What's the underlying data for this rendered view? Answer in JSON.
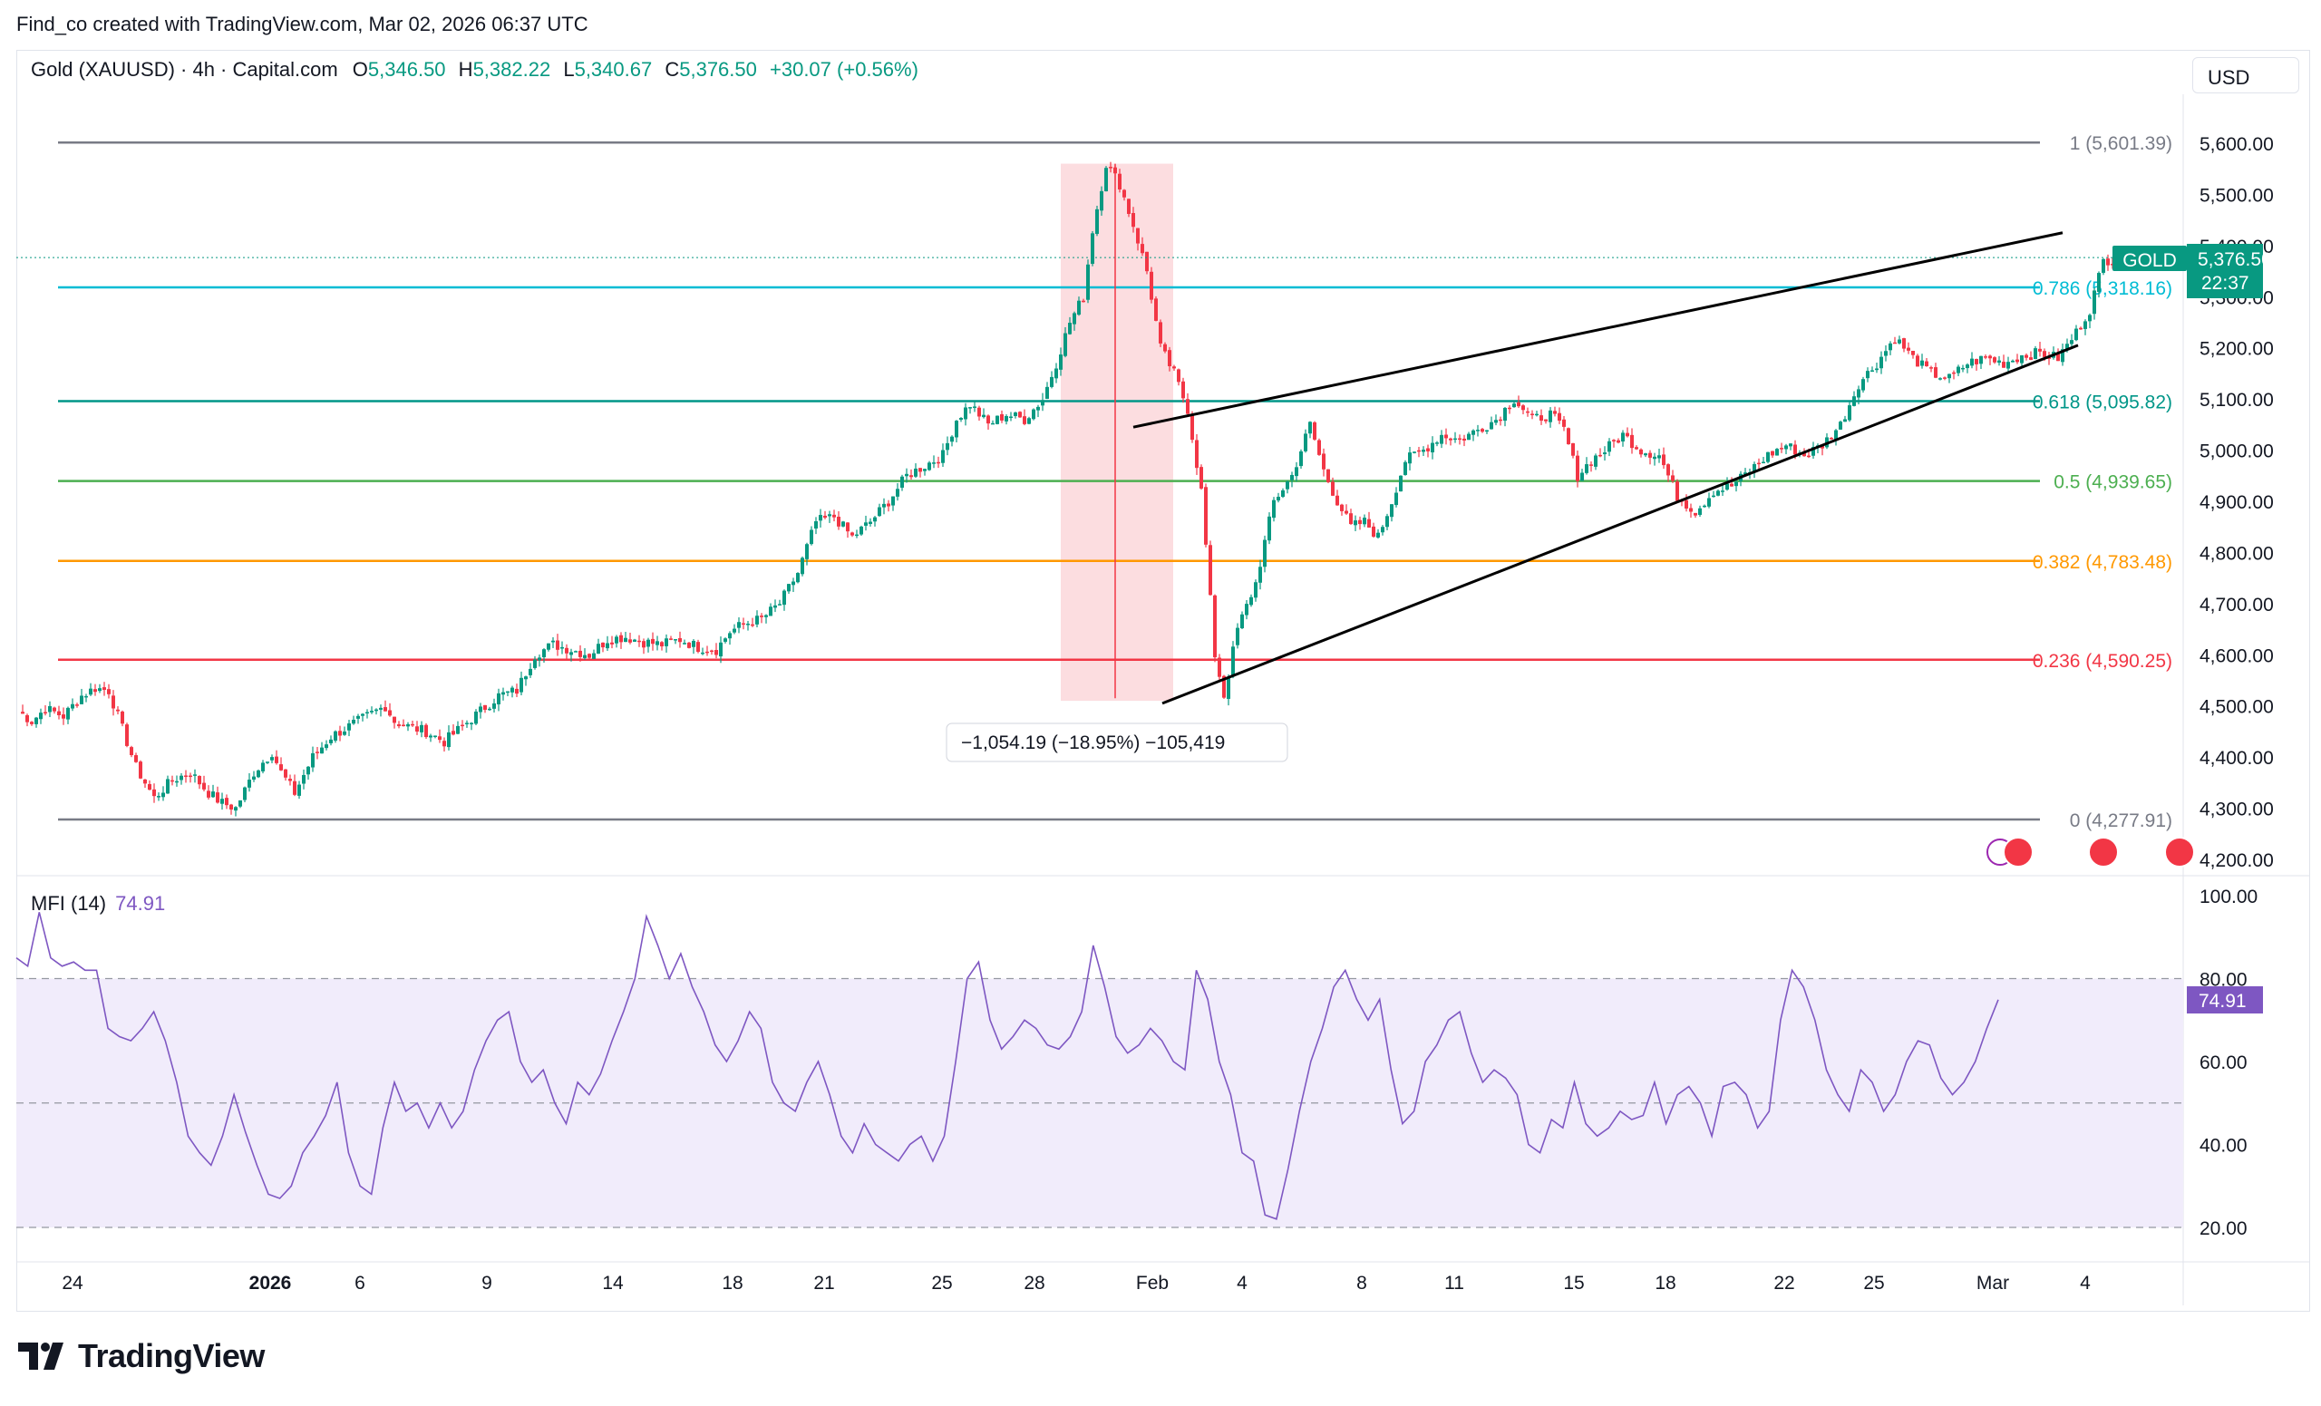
{
  "header": {
    "credit": "Find_co created with TradingView.com, Mar 02, 2026 06:37 UTC"
  },
  "symbol": {
    "title": "Gold (XAUUSD) · 4h · Capital.com",
    "o_label": "O",
    "o": "5,346.50",
    "h_label": "H",
    "h": "5,382.22",
    "l_label": "L",
    "l": "5,340.67",
    "c_label": "C",
    "c": "5,376.50",
    "change": "+30.07 (+0.56%)"
  },
  "currency": "USD",
  "price_badge": {
    "ticker": "GOLD",
    "price": "5,376.50",
    "countdown": "22:37"
  },
  "mfi": {
    "label": "MFI (14)",
    "value": "74.91",
    "badge": "74.91"
  },
  "measure": {
    "label": "−1,054.19 (−18.95%) −105,419"
  },
  "logo": {
    "text": "TradingView"
  },
  "colors": {
    "up": "#089981",
    "down": "#f23645",
    "mfi": "#7e57c2",
    "mfi_fill": "#f1ecfb",
    "fib_1": "#787b86",
    "fib_0786": "#00bcd4",
    "fib_0618": "#009688",
    "fib_05": "#4caf50",
    "fib_0382": "#ff9800",
    "fib_0236": "#f23645",
    "fib_0": "#787b86",
    "measure_fill": "#fbd7da"
  },
  "chart_data": [
    {
      "type": "candlestick",
      "title": "Gold (XAUUSD) · 4h · Capital.com",
      "ylim": [
        4200,
        5650
      ],
      "y_ticks": [
        "4,200.00",
        "4,300.00",
        "4,400.00",
        "4,500.00",
        "4,600.00",
        "4,700.00",
        "4,800.00",
        "4,900.00",
        "5,000.00",
        "5,100.00",
        "5,200.00",
        "5,300.00",
        "5,400.00",
        "5,500.00",
        "5,600.00"
      ],
      "x_ticks": [
        "24",
        "2026",
        "6",
        "9",
        "14",
        "18",
        "21",
        "25",
        "28",
        "Feb",
        "4",
        "8",
        "11",
        "15",
        "18",
        "22",
        "25",
        "Mar",
        "4"
      ],
      "close_path": [
        [
          0,
          4490
        ],
        [
          3,
          4470
        ],
        [
          6,
          4495
        ],
        [
          10,
          4480
        ],
        [
          14,
          4520
        ],
        [
          17,
          4535
        ],
        [
          20,
          4530
        ],
        [
          23,
          4455
        ],
        [
          26,
          4380
        ],
        [
          30,
          4320
        ],
        [
          34,
          4355
        ],
        [
          38,
          4370
        ],
        [
          42,
          4330
        ],
        [
          45,
          4310
        ],
        [
          48,
          4300
        ],
        [
          52,
          4370
        ],
        [
          56,
          4410
        ],
        [
          58,
          4370
        ],
        [
          61,
          4330
        ],
        [
          65,
          4400
        ],
        [
          69,
          4440
        ],
        [
          73,
          4460
        ],
        [
          77,
          4480
        ],
        [
          81,
          4500
        ],
        [
          83,
          4470
        ],
        [
          86,
          4460
        ],
        [
          90,
          4450
        ],
        [
          94,
          4430
        ],
        [
          98,
          4460
        ],
        [
          102,
          4490
        ],
        [
          106,
          4520
        ],
        [
          110,
          4530
        ],
        [
          114,
          4600
        ],
        [
          118,
          4620
        ],
        [
          122,
          4610
        ],
        [
          126,
          4600
        ],
        [
          130,
          4630
        ],
        [
          134,
          4635
        ],
        [
          138,
          4625
        ],
        [
          142,
          4620
        ],
        [
          146,
          4630
        ],
        [
          150,
          4615
        ],
        [
          154,
          4610
        ],
        [
          157,
          4645
        ],
        [
          160,
          4660
        ],
        [
          164,
          4670
        ],
        [
          168,
          4700
        ],
        [
          172,
          4760
        ],
        [
          176,
          4860
        ],
        [
          180,
          4870
        ],
        [
          184,
          4830
        ],
        [
          188,
          4860
        ],
        [
          192,
          4900
        ],
        [
          196,
          4950
        ],
        [
          200,
          4970
        ],
        [
          204,
          4990
        ],
        [
          207,
          5060
        ],
        [
          210,
          5090
        ],
        [
          214,
          5050
        ],
        [
          218,
          5070
        ],
        [
          222,
          5060
        ],
        [
          226,
          5100
        ],
        [
          229,
          5170
        ],
        [
          232,
          5250
        ],
        [
          235,
          5300
        ],
        [
          237,
          5430
        ],
        [
          240,
          5560
        ],
        [
          243,
          5520
        ],
        [
          246,
          5440
        ],
        [
          249,
          5350
        ],
        [
          252,
          5200
        ],
        [
          255,
          5150
        ],
        [
          258,
          5080
        ],
        [
          261,
          4920
        ],
        [
          264,
          4600
        ],
        [
          266,
          4520
        ],
        [
          269,
          4650
        ],
        [
          273,
          4740
        ],
        [
          277,
          4900
        ],
        [
          281,
          4950
        ],
        [
          285,
          5050
        ],
        [
          288,
          4960
        ],
        [
          291,
          4900
        ],
        [
          294,
          4850
        ],
        [
          297,
          4860
        ],
        [
          300,
          4830
        ],
        [
          303,
          4900
        ],
        [
          306,
          4980
        ],
        [
          310,
          5000
        ],
        [
          314,
          5030
        ],
        [
          318,
          5020
        ],
        [
          322,
          5040
        ],
        [
          326,
          5060
        ],
        [
          330,
          5100
        ],
        [
          334,
          5060
        ],
        [
          338,
          5070
        ],
        [
          341,
          5040
        ],
        [
          344,
          4950
        ],
        [
          347,
          4980
        ],
        [
          350,
          5000
        ],
        [
          354,
          5030
        ],
        [
          358,
          5000
        ],
        [
          362,
          4990
        ],
        [
          366,
          4910
        ],
        [
          370,
          4880
        ],
        [
          374,
          4920
        ],
        [
          378,
          4930
        ],
        [
          382,
          4960
        ],
        [
          386,
          4990
        ],
        [
          390,
          5010
        ],
        [
          394,
          4990
        ],
        [
          398,
          5010
        ],
        [
          402,
          5050
        ],
        [
          406,
          5130
        ],
        [
          410,
          5170
        ],
        [
          414,
          5220
        ],
        [
          418,
          5180
        ],
        [
          422,
          5150
        ],
        [
          426,
          5140
        ],
        [
          430,
          5170
        ],
        [
          434,
          5180
        ],
        [
          438,
          5170
        ],
        [
          442,
          5185
        ],
        [
          446,
          5190
        ],
        [
          450,
          5180
        ],
        [
          454,
          5230
        ],
        [
          457,
          5275
        ],
        [
          460,
          5370
        ],
        [
          463,
          5376.5
        ]
      ],
      "fib_levels": [
        {
          "ratio": "1",
          "price": 5601.39,
          "label": "1 (5,601.39)"
        },
        {
          "ratio": "0.786",
          "price": 5318.16,
          "label": "0.786 (5,318.16)"
        },
        {
          "ratio": "0.618",
          "price": 5095.82,
          "label": "0.618 (5,095.82)"
        },
        {
          "ratio": "0.5",
          "price": 4939.65,
          "label": "0.5 (4,939.65)"
        },
        {
          "ratio": "0.382",
          "price": 4783.48,
          "label": "0.382 (4,783.48)"
        },
        {
          "ratio": "0.236",
          "price": 4590.25,
          "label": "0.236 (4,590.25)"
        },
        {
          "ratio": "0",
          "price": 4277.91,
          "label": "0 (4,277.91)"
        }
      ],
      "last_price": 5376.5
    },
    {
      "type": "line",
      "title": "MFI (14)",
      "ylim": [
        20,
        100
      ],
      "y_ticks": [
        "20.00",
        "40.00",
        "60.00",
        "80.00",
        "100.00"
      ],
      "band": [
        50,
        80
      ],
      "values": [
        85,
        83,
        96,
        85,
        83,
        84,
        82,
        82,
        68,
        66,
        65,
        68,
        72,
        65,
        55,
        42,
        38,
        35,
        42,
        52,
        43,
        35,
        28,
        27,
        30,
        38,
        42,
        47,
        55,
        38,
        30,
        28,
        44,
        55,
        48,
        50,
        44,
        50,
        44,
        48,
        58,
        65,
        70,
        72,
        60,
        55,
        58,
        50,
        45,
        55,
        52,
        57,
        65,
        72,
        80,
        95,
        88,
        80,
        86,
        78,
        72,
        64,
        60,
        65,
        72,
        68,
        55,
        50,
        48,
        55,
        60,
        52,
        42,
        38,
        45,
        40,
        38,
        36,
        40,
        42,
        36,
        42,
        60,
        80,
        84,
        70,
        63,
        66,
        70,
        68,
        64,
        63,
        66,
        72,
        88,
        78,
        66,
        62,
        64,
        68,
        65,
        60,
        58,
        82,
        75,
        60,
        52,
        38,
        36,
        23,
        22,
        34,
        48,
        60,
        68,
        78,
        82,
        75,
        70,
        75,
        58,
        45,
        48,
        60,
        64,
        70,
        72,
        62,
        55,
        58,
        56,
        52,
        40,
        38,
        46,
        44,
        55,
        45,
        42,
        44,
        48,
        46,
        47,
        55,
        45,
        52,
        54,
        50,
        42,
        54,
        55,
        52,
        44,
        48,
        70,
        82,
        78,
        70,
        58,
        52,
        48,
        58,
        55,
        48,
        52,
        60,
        65,
        64,
        56,
        52,
        55,
        60,
        68,
        74.91
      ]
    }
  ]
}
